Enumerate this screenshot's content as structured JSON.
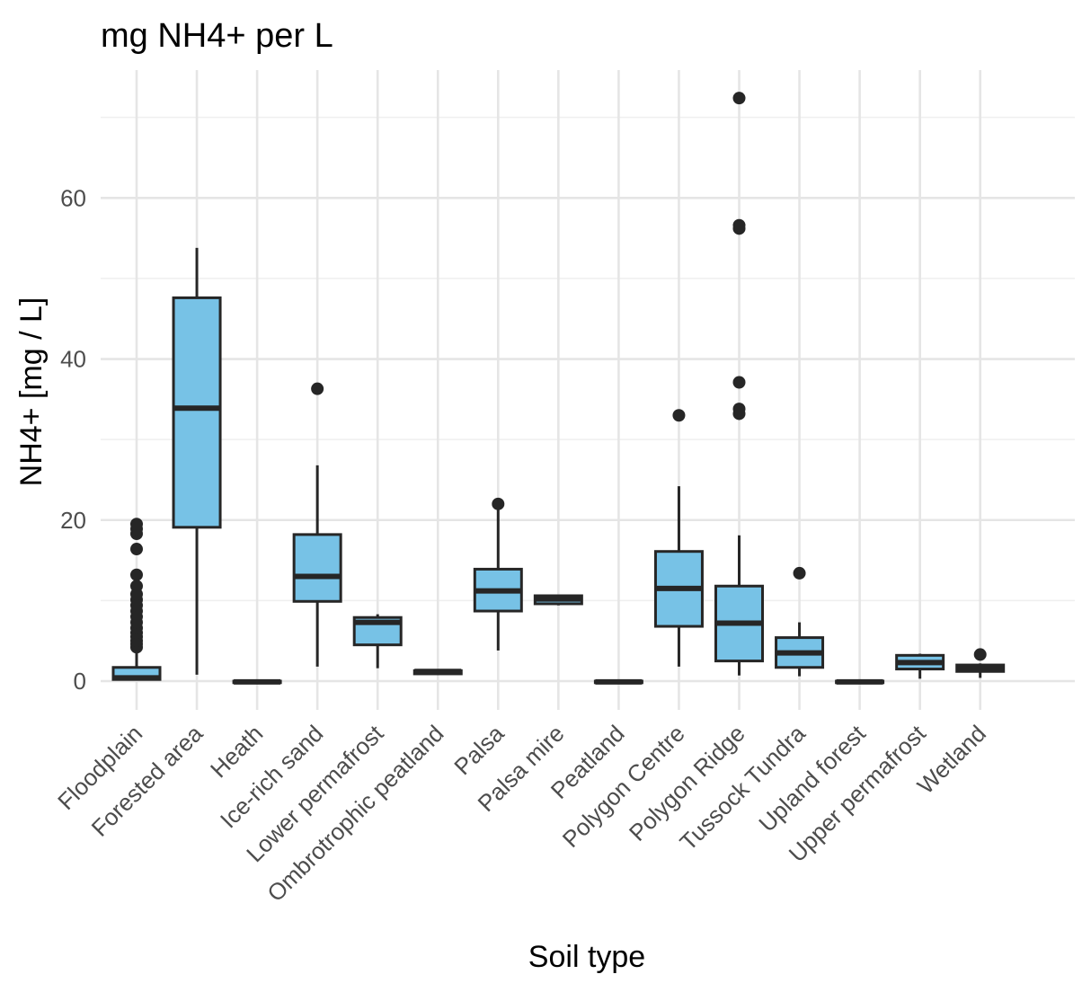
{
  "chart_data": {
    "type": "box",
    "title": "mg NH4+ per L",
    "xlabel": "Soil type",
    "ylabel": "NH4+ [mg / L]",
    "ylim": [
      -3.6,
      76
    ],
    "yticks": [
      0,
      20,
      40,
      60
    ],
    "grid": true,
    "legend": "none",
    "fill_color": "#77c2e6",
    "line_color": "#262626",
    "categories": [
      "Floodplain",
      "Forested area",
      "Heath",
      "Ice-rich sand",
      "Lower permafrost",
      "Ombrotrophic peatland",
      "Palsa",
      "Palsa mire",
      "Peatland",
      "Polygon Centre",
      "Polygon Ridge",
      "Tussock Tundra",
      "Upland forest",
      "Upper permafrost",
      "Wetland"
    ],
    "series": [
      {
        "category": "Floodplain",
        "whisker_low": 0.1,
        "q1": 0.2,
        "median": 0.4,
        "q3": 1.7,
        "whisker_high": 3.9,
        "outliers": [
          4.2,
          4.6,
          5.0,
          5.5,
          6.0,
          6.6,
          7.3,
          8.0,
          8.7,
          9.4,
          10.1,
          10.8,
          11.8,
          13.2,
          16.4,
          18.3,
          18.9,
          19.5
        ]
      },
      {
        "category": "Forested area",
        "whisker_low": 0.8,
        "q1": 19.1,
        "median": 33.9,
        "q3": 47.6,
        "whisker_high": 53.8,
        "outliers": []
      },
      {
        "category": "Heath",
        "whisker_low": -0.2,
        "q1": -0.2,
        "median": -0.1,
        "q3": 0.0,
        "whisker_high": 0.0,
        "outliers": []
      },
      {
        "category": "Ice-rich sand",
        "whisker_low": 1.8,
        "q1": 9.9,
        "median": 13.0,
        "q3": 18.2,
        "whisker_high": 26.8,
        "outliers": [
          36.3
        ]
      },
      {
        "category": "Lower permafrost",
        "whisker_low": 1.6,
        "q1": 4.5,
        "median": 7.3,
        "q3": 7.9,
        "whisker_high": 8.3,
        "outliers": []
      },
      {
        "category": "Ombrotrophic peatland",
        "whisker_low": 0.9,
        "q1": 0.9,
        "median": 1.2,
        "q3": 1.3,
        "whisker_high": 1.3,
        "outliers": []
      },
      {
        "category": "Palsa",
        "whisker_low": 3.8,
        "q1": 8.7,
        "median": 11.2,
        "q3": 13.9,
        "whisker_high": 21.3,
        "outliers": [
          22.0
        ]
      },
      {
        "category": "Palsa mire",
        "whisker_low": 9.4,
        "q1": 9.6,
        "median": 10.2,
        "q3": 10.6,
        "whisker_high": 10.7,
        "outliers": []
      },
      {
        "category": "Peatland",
        "whisker_low": -0.2,
        "q1": -0.2,
        "median": -0.1,
        "q3": 0.0,
        "whisker_high": 0.0,
        "outliers": []
      },
      {
        "category": "Polygon Centre",
        "whisker_low": 1.8,
        "q1": 6.8,
        "median": 11.5,
        "q3": 16.1,
        "whisker_high": 24.2,
        "outliers": [
          33.0
        ]
      },
      {
        "category": "Polygon Ridge",
        "whisker_low": 0.7,
        "q1": 2.5,
        "median": 7.2,
        "q3": 11.8,
        "whisker_high": 18.1,
        "outliers": [
          33.2,
          33.8,
          37.1,
          56.2,
          56.6,
          72.4
        ]
      },
      {
        "category": "Tussock Tundra",
        "whisker_low": 0.6,
        "q1": 1.7,
        "median": 3.5,
        "q3": 5.4,
        "whisker_high": 7.3,
        "outliers": [
          13.4
        ]
      },
      {
        "category": "Upland forest",
        "whisker_low": -0.2,
        "q1": -0.2,
        "median": -0.1,
        "q3": 0.0,
        "whisker_high": 0.0,
        "outliers": []
      },
      {
        "category": "Upper permafrost",
        "whisker_low": 0.3,
        "q1": 1.5,
        "median": 2.3,
        "q3": 3.2,
        "whisker_high": 3.4,
        "outliers": []
      },
      {
        "category": "Wetland",
        "whisker_low": 0.4,
        "q1": 1.2,
        "median": 1.6,
        "q3": 2.0,
        "whisker_high": 2.2,
        "outliers": [
          3.3
        ]
      }
    ]
  }
}
